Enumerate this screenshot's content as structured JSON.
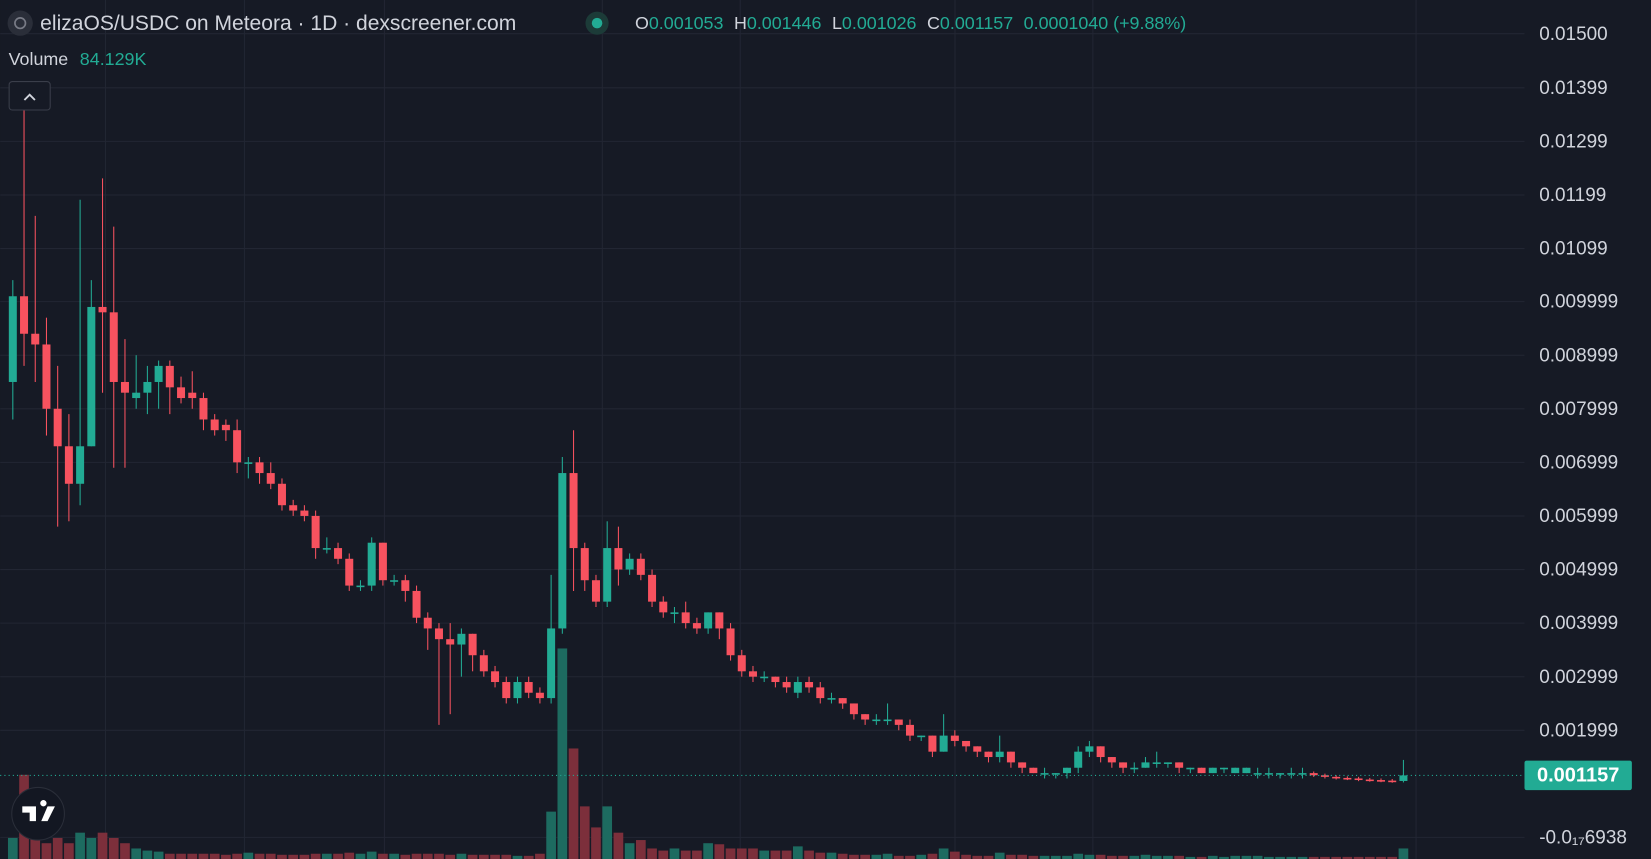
{
  "chart_data": {
    "type": "candlestick",
    "title": "elizaOS/USDC on Meteora · 1D · dexscreener.com",
    "ohlc_labels": [
      "O",
      "H",
      "L",
      "C"
    ],
    "change": "0.0001040 (+9.88%)",
    "up_color": "#22ab94",
    "down_color": "#f7525f",
    "grid": true,
    "ylim": [
      -0.000403,
      0.015629
    ],
    "yticks": [
      {
        "value": 0.015,
        "label": "0.01500"
      },
      0.01399,
      0.01299,
      0.01199,
      0.01099,
      0.009999,
      0.008999,
      0.007999,
      0.006999,
      0.005999,
      0.004999,
      0.003999,
      0.002999,
      0.001999,
      {
        "value": -6.938e-19,
        "label": "-0.0₁₇6938"
      }
    ],
    "open": [
      0.0085,
      0.0101,
      0.0094,
      0.0092,
      0.008,
      0.0073,
      0.0066,
      0.0073,
      0.0099,
      0.0098,
      0.0085,
      0.0082,
      0.0083,
      0.0085,
      0.0088,
      0.0084,
      0.0083,
      0.0082,
      0.0078,
      0.0077,
      0.0076,
      0.007,
      0.007,
      0.0068,
      0.0066,
      0.0062,
      0.0061,
      0.006,
      0.0054,
      0.0054,
      0.0052,
      0.0047,
      0.0047,
      0.0055,
      0.0048,
      0.0048,
      0.0046,
      0.0041,
      0.0039,
      0.0037,
      0.0036,
      0.0038,
      0.0034,
      0.0031,
      0.0029,
      0.0026,
      0.0029,
      0.0027,
      0.0026,
      0.0039,
      0.0068,
      0.0054,
      0.0048,
      0.0044,
      0.0054,
      0.005,
      0.0052,
      0.0049,
      0.0044,
      0.0042,
      0.0042,
      0.004,
      0.0039,
      0.0042,
      0.0039,
      0.0034,
      0.0031,
      0.003,
      0.003,
      0.0029,
      0.0027,
      0.0029,
      0.0028,
      0.0026,
      0.0026,
      0.0025,
      0.0023,
      0.0022,
      0.0022,
      0.0022,
      0.0021,
      0.0019,
      0.0019,
      0.0016,
      0.0019,
      0.0018,
      0.0017,
      0.0016,
      0.0015,
      0.0016,
      0.0014,
      0.0013,
      0.0012,
      0.0012,
      0.0012,
      0.0013,
      0.0016,
      0.0017,
      0.0015,
      0.0014,
      0.0013,
      0.0013,
      0.0014,
      0.0014,
      0.0014,
      0.0013,
      0.0013,
      0.0012,
      0.0013,
      0.0012,
      0.0012,
      0.0012,
      0.0012,
      0.0012,
      0.0012,
      0.0012,
      0.0012,
      0.00116,
      0.00113,
      0.00111,
      0.0011,
      0.00108,
      0.00107,
      0.00106,
      0.001053
    ],
    "high": [
      0.0104,
      0.0137,
      0.0116,
      0.0097,
      0.0088,
      0.0079,
      0.0119,
      0.0104,
      0.0123,
      0.0114,
      0.0093,
      0.009,
      0.0088,
      0.0089,
      0.0089,
      0.0086,
      0.0087,
      0.0083,
      0.0079,
      0.0078,
      0.0078,
      0.0071,
      0.0071,
      0.007,
      0.0067,
      0.0063,
      0.0062,
      0.0061,
      0.0056,
      0.0055,
      0.0053,
      0.0048,
      0.0056,
      0.0055,
      0.0049,
      0.0049,
      0.0047,
      0.0042,
      0.004,
      0.004,
      0.0039,
      0.0038,
      0.0035,
      0.0032,
      0.003,
      0.003,
      0.003,
      0.0028,
      0.0049,
      0.0071,
      0.0076,
      0.0055,
      0.0049,
      0.0059,
      0.0058,
      0.0053,
      0.0053,
      0.005,
      0.0045,
      0.0043,
      0.0044,
      0.0041,
      0.0042,
      0.0042,
      0.004,
      0.0035,
      0.0032,
      0.0031,
      0.003,
      0.003,
      0.003,
      0.003,
      0.0029,
      0.0027,
      0.0026,
      0.0025,
      0.0023,
      0.0023,
      0.0025,
      0.0022,
      0.0022,
      0.0019,
      0.0019,
      0.0023,
      0.002,
      0.0018,
      0.0017,
      0.0016,
      0.0019,
      0.0016,
      0.0014,
      0.0013,
      0.0013,
      0.0012,
      0.0013,
      0.0017,
      0.0018,
      0.0017,
      0.0015,
      0.0014,
      0.0014,
      0.0015,
      0.0016,
      0.0014,
      0.0014,
      0.0013,
      0.0013,
      0.0013,
      0.0013,
      0.0013,
      0.0013,
      0.0013,
      0.0013,
      0.0012,
      0.0013,
      0.0013,
      0.00123,
      0.00119,
      0.00116,
      0.00114,
      0.00113,
      0.00111,
      0.0011,
      0.00109,
      0.001446
    ],
    "low": [
      0.0078,
      0.0088,
      0.0085,
      0.0075,
      0.0058,
      0.0059,
      0.0062,
      0.0073,
      0.0083,
      0.0069,
      0.0069,
      0.008,
      0.0079,
      0.008,
      0.0079,
      0.0081,
      0.008,
      0.0076,
      0.0075,
      0.0074,
      0.0068,
      0.0067,
      0.0066,
      0.0065,
      0.0061,
      0.006,
      0.0059,
      0.0052,
      0.0053,
      0.0051,
      0.0046,
      0.0046,
      0.0046,
      0.0047,
      0.0047,
      0.0044,
      0.004,
      0.0035,
      0.0021,
      0.0023,
      0.003,
      0.0031,
      0.003,
      0.0028,
      0.0025,
      0.0025,
      0.0026,
      0.0025,
      0.0025,
      0.0038,
      0.0046,
      0.0046,
      0.0043,
      0.0043,
      0.0047,
      0.0049,
      0.0048,
      0.0043,
      0.0041,
      0.004,
      0.0039,
      0.0038,
      0.0038,
      0.0037,
      0.0033,
      0.003,
      0.0029,
      0.0029,
      0.0028,
      0.0027,
      0.0026,
      0.0027,
      0.0025,
      0.0025,
      0.0024,
      0.0022,
      0.0021,
      0.0021,
      0.0021,
      0.002,
      0.0018,
      0.0018,
      0.0015,
      0.0016,
      0.0017,
      0.0016,
      0.0015,
      0.0014,
      0.0014,
      0.0013,
      0.0012,
      0.0012,
      0.0011,
      0.0011,
      0.0011,
      0.0012,
      0.0015,
      0.0014,
      0.0013,
      0.0012,
      0.0012,
      0.0013,
      0.0013,
      0.0013,
      0.0012,
      0.0012,
      0.0012,
      0.0012,
      0.0012,
      0.0012,
      0.0012,
      0.0011,
      0.0011,
      0.0011,
      0.0011,
      0.0011,
      0.00113,
      0.0011,
      0.00108,
      0.00107,
      0.00105,
      0.00104,
      0.00103,
      0.00102,
      0.001026
    ],
    "close": [
      0.0101,
      0.0094,
      0.0092,
      0.008,
      0.0073,
      0.0066,
      0.0073,
      0.0099,
      0.0098,
      0.0085,
      0.0083,
      0.0083,
      0.0085,
      0.0088,
      0.0084,
      0.0082,
      0.0082,
      0.0078,
      0.0076,
      0.0076,
      0.007,
      0.007,
      0.0068,
      0.0066,
      0.0062,
      0.0061,
      0.006,
      0.0054,
      0.0054,
      0.0052,
      0.0047,
      0.0047,
      0.0055,
      0.0048,
      0.0048,
      0.0046,
      0.0041,
      0.0039,
      0.0037,
      0.0036,
      0.0038,
      0.0034,
      0.0031,
      0.0029,
      0.0026,
      0.0029,
      0.0027,
      0.0026,
      0.0039,
      0.0068,
      0.0054,
      0.0048,
      0.0044,
      0.0054,
      0.005,
      0.0052,
      0.0049,
      0.0044,
      0.0042,
      0.0042,
      0.004,
      0.0039,
      0.0042,
      0.0039,
      0.0034,
      0.0031,
      0.003,
      0.003,
      0.0029,
      0.0028,
      0.0029,
      0.0028,
      0.0026,
      0.0026,
      0.0025,
      0.0023,
      0.0022,
      0.0022,
      0.0022,
      0.0021,
      0.0019,
      0.0019,
      0.0016,
      0.0019,
      0.0018,
      0.0017,
      0.0016,
      0.0015,
      0.0016,
      0.0014,
      0.0013,
      0.0012,
      0.0012,
      0.0012,
      0.0013,
      0.0016,
      0.0017,
      0.0015,
      0.0014,
      0.0013,
      0.0013,
      0.0014,
      0.0014,
      0.0014,
      0.0013,
      0.0013,
      0.0012,
      0.0013,
      0.0013,
      0.0013,
      0.0013,
      0.0012,
      0.0012,
      0.0012,
      0.0012,
      0.0012,
      0.00116,
      0.00113,
      0.00111,
      0.0011,
      0.00108,
      0.00107,
      0.00106,
      0.00105,
      0.001157
    ],
    "volume": {
      "name": "Volume",
      "value_label": "84.129K",
      "values": [
        168000,
        672000,
        168000,
        126000,
        168000,
        126000,
        210000,
        168000,
        210000,
        168000,
        126000,
        84000,
        67200,
        58800,
        42000,
        42000,
        42000,
        42000,
        42000,
        33600,
        42000,
        50400,
        42000,
        42000,
        33600,
        33600,
        33600,
        42000,
        42000,
        42000,
        50400,
        42000,
        58800,
        42000,
        42000,
        33600,
        42000,
        42000,
        42000,
        33600,
        42000,
        33600,
        33600,
        33600,
        33600,
        25200,
        25200,
        42000,
        378000,
        1680000,
        882000,
        420000,
        252000,
        420000,
        210000,
        126000,
        151200,
        84000,
        67200,
        84000,
        67200,
        67200,
        126000,
        117600,
        84000,
        84000,
        84000,
        67200,
        67200,
        67200,
        100800,
        67200,
        50400,
        50400,
        42000,
        33600,
        33600,
        33600,
        42000,
        25200,
        25200,
        33600,
        42000,
        84000,
        58800,
        33600,
        25200,
        25200,
        50400,
        33600,
        33600,
        25200,
        25200,
        25200,
        25200,
        42000,
        33600,
        33600,
        25200,
        25200,
        25200,
        33600,
        25200,
        25200,
        25200,
        16800,
        16800,
        25200,
        16800,
        25200,
        25200,
        25200,
        16800,
        16800,
        16800,
        16800,
        16800,
        16800,
        16800,
        16800,
        16800,
        16800,
        16800,
        16800,
        84129
      ],
      "up_color": "#1d6b60",
      "down_color": "#7c2f3b"
    }
  }
}
